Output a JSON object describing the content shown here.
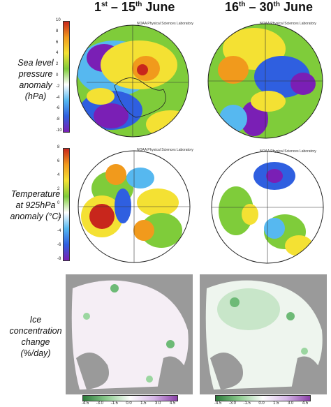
{
  "columns": [
    {
      "pre": "1",
      "sup1": "st",
      "mid": " – 15",
      "sup2": "th",
      "post": " June"
    },
    {
      "pre": "16",
      "sup1": "th",
      "mid": " – 30",
      "sup2": "th",
      "post": " June"
    }
  ],
  "rows": {
    "slp": [
      "Sea level",
      "pressure",
      "anomaly",
      "(hPa)"
    ],
    "temp": [
      "Temperature",
      "at 925hPa",
      "anomaly (°C)"
    ],
    "ice": [
      "Ice",
      "concentration",
      "change",
      "(%/day)"
    ]
  },
  "credit": "NOAA Physical Sciences Laboratory",
  "slp_scale": [
    "10",
    "8",
    "6",
    "4",
    "2",
    "0",
    "-2",
    "-4",
    "-6",
    "-8",
    "-10"
  ],
  "temp_scale": [
    "8",
    "6",
    "4",
    "2",
    "0",
    "-2",
    "-4",
    "-6",
    "-8"
  ],
  "ice_scale": [
    "-4.5",
    "-3.0",
    "-1.5",
    "0.0",
    "1.5",
    "3.0",
    "4.5"
  ],
  "colors": {
    "purple": "#7a1fb5",
    "blue": "#2f5fe0",
    "cyan": "#56b8f0",
    "green": "#7fcc3a",
    "yellow": "#f4e133",
    "orange": "#f19a1c",
    "red": "#c8261c",
    "land_grey": "#9a9a9a"
  }
}
